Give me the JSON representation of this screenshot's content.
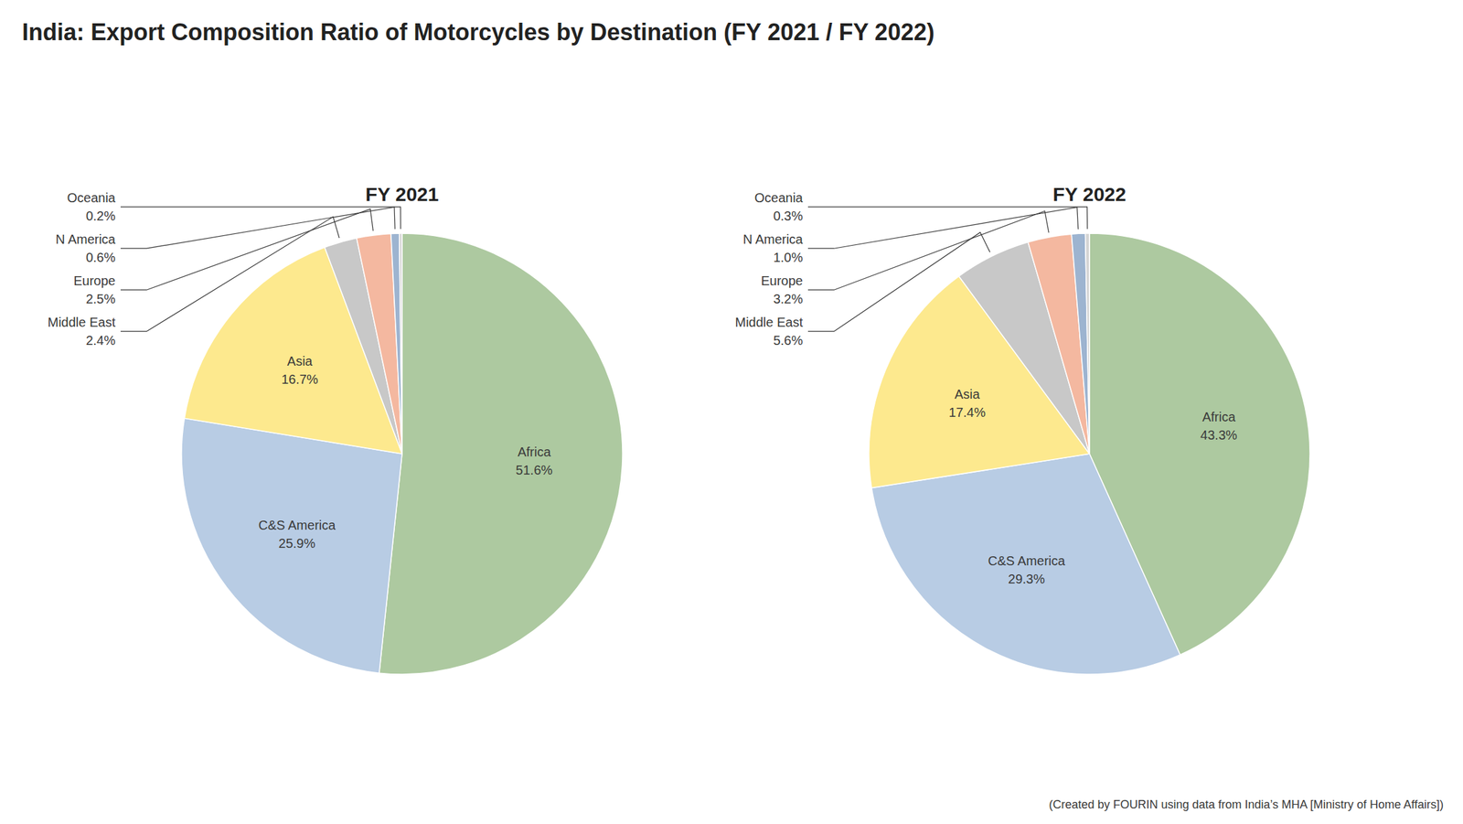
{
  "title": "India: Export Composition Ratio of Motorcycles by Destination (FY 2021 / FY 2022)",
  "footnote": "(Created by FOURIN using data from India’s MHA [Ministry of Home Affairs])",
  "chart_data": [
    {
      "type": "pie",
      "title": "FY 2021",
      "categories": [
        "Africa",
        "C&S America",
        "Asia",
        "Middle East",
        "Europe",
        "N America",
        "Oceania"
      ],
      "values": [
        51.6,
        25.9,
        16.7,
        2.4,
        2.5,
        0.6,
        0.2
      ],
      "value_labels": [
        "51.6%",
        "25.9%",
        "16.7%",
        "2.4%",
        "2.5%",
        "0.6%",
        "0.2%"
      ],
      "colors": [
        "#adc9a0",
        "#b8cce4",
        "#fde98e",
        "#c8c8c8",
        "#f4b8a0",
        "#9db4d0",
        "#d4d4d4"
      ],
      "data_labels": true
    },
    {
      "type": "pie",
      "title": "FY 2022",
      "categories": [
        "Africa",
        "C&S America",
        "Asia",
        "Middle East",
        "Europe",
        "N America",
        "Oceania"
      ],
      "values": [
        43.3,
        29.3,
        17.4,
        5.6,
        3.2,
        1.0,
        0.3
      ],
      "value_labels": [
        "43.3%",
        "29.3%",
        "17.4%",
        "5.6%",
        "3.2%",
        "1.0%",
        "0.3%"
      ],
      "colors": [
        "#adc9a0",
        "#b8cce4",
        "#fde98e",
        "#c8c8c8",
        "#f4b8a0",
        "#9db4d0",
        "#d4d4d4"
      ],
      "data_labels": true
    }
  ]
}
